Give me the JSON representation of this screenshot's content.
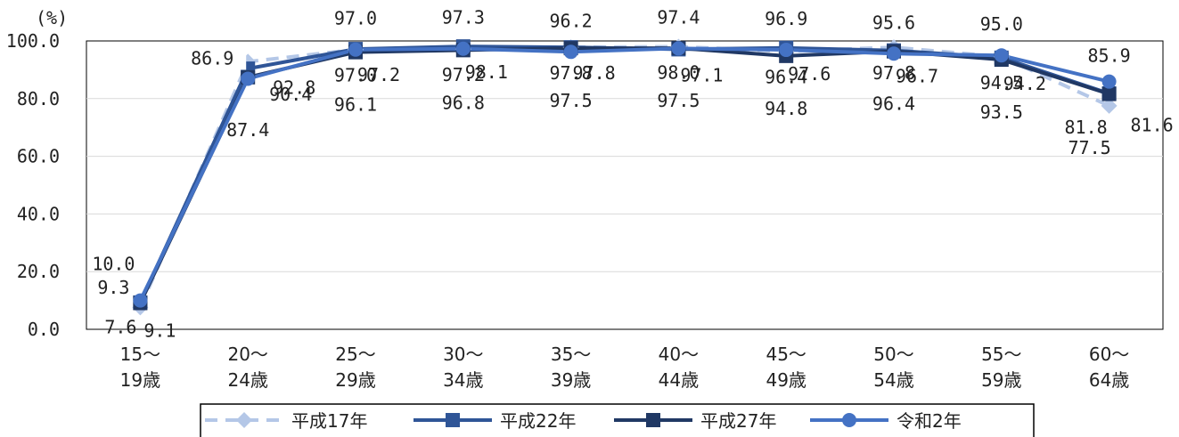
{
  "chart_data": {
    "type": "line",
    "unit_label": "(%)",
    "categories": [
      [
        "15～",
        "19歳"
      ],
      [
        "20～",
        "24歳"
      ],
      [
        "25～",
        "29歳"
      ],
      [
        "30～",
        "34歳"
      ],
      [
        "35～",
        "39歳"
      ],
      [
        "40～",
        "44歳"
      ],
      [
        "45～",
        "49歳"
      ],
      [
        "50～",
        "54歳"
      ],
      [
        "55～",
        "59歳"
      ],
      [
        "60～",
        "64歳"
      ]
    ],
    "ylim": [
      0,
      100
    ],
    "yticks": [
      "0.0",
      "20.0",
      "40.0",
      "60.0",
      "80.0",
      "100.0"
    ],
    "grid": true,
    "legend_position": "bottom",
    "series": [
      {
        "name": "平成17年",
        "color": "#b4c7e7",
        "marker": "diamond",
        "dash": true,
        "values": [
          7.6,
          92.8,
          97.0,
          97.2,
          97.8,
          98.0,
          96.4,
          97.8,
          94.5,
          77.5
        ],
        "labels": [
          "7.6",
          "92.8",
          "97.0",
          "97.2",
          "97.8",
          "98.0",
          "96.4",
          "97.8",
          "94.5",
          "77.5"
        ]
      },
      {
        "name": "平成22年",
        "color": "#2f5597",
        "marker": "square",
        "dash": false,
        "values": [
          9.3,
          90.4,
          97.2,
          98.1,
          97.8,
          97.1,
          97.6,
          96.7,
          94.2,
          81.8
        ],
        "labels": [
          "9.3",
          "90.4",
          "97.2",
          "98.1",
          "97.8",
          "97.1",
          "97.6",
          "96.7",
          "94.2",
          "81.8"
        ]
      },
      {
        "name": "平成27年",
        "color": "#203864",
        "marker": "square",
        "dash": false,
        "values": [
          9.1,
          87.4,
          96.1,
          96.8,
          97.5,
          97.5,
          94.8,
          96.4,
          93.5,
          81.6
        ],
        "labels": [
          "9.1",
          "87.4",
          "96.1",
          "96.8",
          "97.5",
          "97.5",
          "94.8",
          "96.4",
          "93.5",
          "81.6"
        ]
      },
      {
        "name": "令和2年",
        "color": "#4472c4",
        "marker": "circle",
        "dash": false,
        "values": [
          10.0,
          86.9,
          97.0,
          97.3,
          96.2,
          97.4,
          96.9,
          95.6,
          95.0,
          85.9
        ],
        "labels": [
          "10.0",
          "86.9",
          "97.0",
          "97.3",
          "96.2",
          "97.4",
          "96.9",
          "95.6",
          "95.0",
          "85.9"
        ]
      }
    ]
  }
}
